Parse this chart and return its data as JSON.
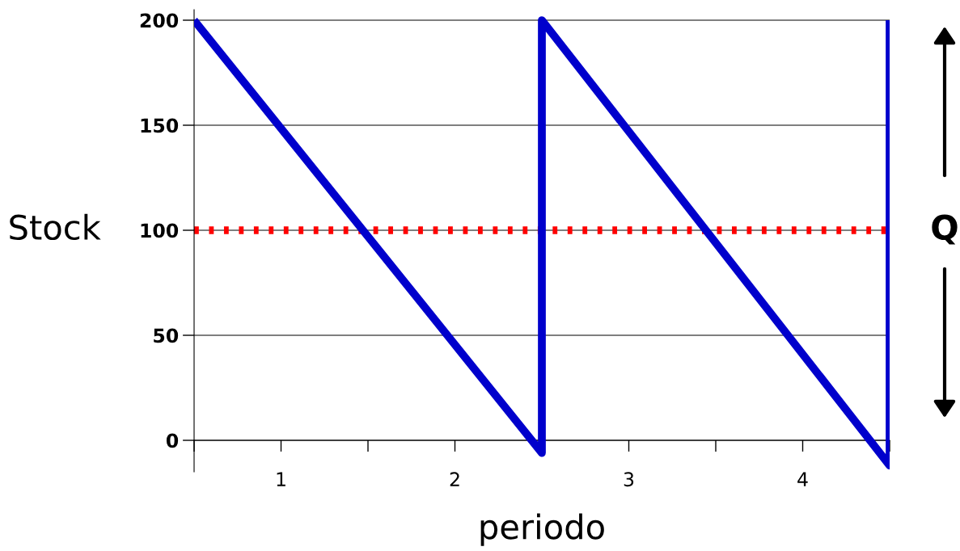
{
  "chart_data": {
    "type": "line",
    "xlabel": "periodo",
    "ylabel": "Stock",
    "xlim": [
      0.5,
      4.5
    ],
    "xticks": [
      {
        "value": 0.5,
        "label": null
      },
      1,
      {
        "value": 1.5,
        "label": null
      },
      2,
      {
        "value": 2.5,
        "label": null
      },
      3,
      {
        "value": 3.5,
        "label": null
      },
      4,
      {
        "value": 4.5,
        "label": null
      }
    ],
    "ylim": [
      -15,
      205
    ],
    "yticks": [
      0,
      50,
      100,
      150,
      200
    ],
    "grid": "y",
    "marker": "none",
    "line_style": "solid",
    "series": [
      {
        "color": "#0000cc",
        "x": [
          0.5,
          2.5,
          2.5,
          4.5,
          4.5
        ],
        "values": [
          200,
          -6,
          200,
          -12,
          200
        ]
      }
    ],
    "ref_lines": [
      {
        "axis": "y",
        "value": 100,
        "color": "#ff0000",
        "line_style": "dotted"
      }
    ],
    "annotations": [
      "Q"
    ]
  }
}
